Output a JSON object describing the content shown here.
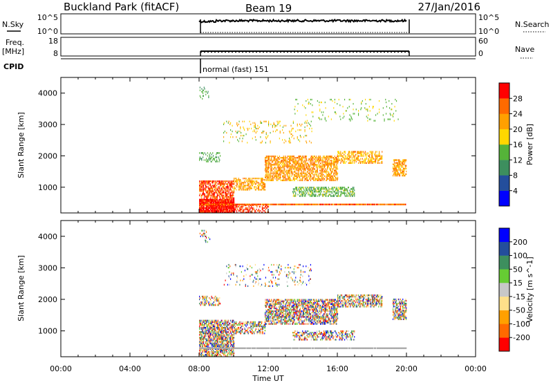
{
  "header": {
    "station": "Buckland Park (fitACF)",
    "beam": "Beam 19",
    "date": "27/Jan/2016"
  },
  "status_panels": {
    "nsky": {
      "label": "N.Sky",
      "ticks": [
        "10^5",
        "10^0"
      ]
    },
    "nsearch": {
      "label": "N.Search",
      "ticks": [
        "10^5",
        "10^0"
      ]
    },
    "freq": {
      "label_line1": "Freq.",
      "label_line2": "[MHz]",
      "ticks": [
        "18",
        "8"
      ]
    },
    "nave": {
      "label": "Nave",
      "ticks": [
        "60",
        "0"
      ]
    },
    "cpid": {
      "label": "CPID",
      "mode": "normal (fast) 151"
    }
  },
  "colors": {
    "power": [
      "#0000ff",
      "#244e9c",
      "#3d8f5e",
      "#55b339",
      "#ffd700",
      "#ffa000",
      "#ff6a00",
      "#ff0000"
    ],
    "velocity": [
      "#ff0000",
      "#ff6a00",
      "#ffa000",
      "#ffe08a",
      "#c8c8c8",
      "#66cc33",
      "#3d8f5e",
      "#244e9c",
      "#0000ff"
    ],
    "ground_scatter": "#a8a8a8",
    "accent": "#000000"
  },
  "chart_data": [
    {
      "type": "heatmap",
      "name": "power-panel",
      "ylabel": "Slant Range [km]",
      "xlabel": "",
      "xlim_hours": [
        0,
        24
      ],
      "ylim": [
        180,
        4500
      ],
      "yticks": [
        1000,
        2000,
        3000,
        4000
      ],
      "colorbar": {
        "label": "Power [dB]",
        "range": [
          0,
          32
        ],
        "ticks": [
          4,
          8,
          12,
          16,
          20,
          24,
          28
        ]
      },
      "data_window_hours": [
        8,
        20
      ],
      "regions": [
        {
          "x": [
            8.0,
            10.0
          ],
          "y": [
            180,
            1200
          ],
          "level": [
            22,
            32
          ],
          "density": 0.55
        },
        {
          "x": [
            8.0,
            10.0
          ],
          "y": [
            180,
            600
          ],
          "level": [
            27,
            32
          ],
          "density": 0.75
        },
        {
          "x": [
            8.0,
            20.0
          ],
          "y": [
            430,
            470
          ],
          "level": [
            22,
            30
          ],
          "density": 0.95
        },
        {
          "x": [
            10.0,
            12.0
          ],
          "y": [
            180,
            440
          ],
          "level": [
            24,
            32
          ],
          "density": 0.35
        },
        {
          "x": [
            10.0,
            11.8
          ],
          "y": [
            900,
            1300
          ],
          "level": [
            18,
            26
          ],
          "density": 0.45
        },
        {
          "x": [
            11.8,
            16.0
          ],
          "y": [
            1200,
            2000
          ],
          "level": [
            18,
            28
          ],
          "density": 0.5
        },
        {
          "x": [
            16.0,
            18.6
          ],
          "y": [
            1750,
            2150
          ],
          "level": [
            16,
            26
          ],
          "density": 0.45
        },
        {
          "x": [
            19.2,
            20.0
          ],
          "y": [
            1350,
            1850
          ],
          "level": [
            18,
            27
          ],
          "density": 0.5
        },
        {
          "x": [
            13.4,
            17.0
          ],
          "y": [
            700,
            1000
          ],
          "level": [
            10,
            17
          ],
          "density": 0.4
        },
        {
          "x": [
            8.0,
            9.2
          ],
          "y": [
            1800,
            2100
          ],
          "level": [
            10,
            16
          ],
          "density": 0.25
        },
        {
          "x": [
            9.4,
            14.5
          ],
          "y": [
            2400,
            3100
          ],
          "level": [
            14,
            24
          ],
          "density": 0.07
        },
        {
          "x": [
            13.5,
            19.6
          ],
          "y": [
            3100,
            3800
          ],
          "level": [
            12,
            18
          ],
          "density": 0.05
        },
        {
          "x": [
            8.0,
            8.6
          ],
          "y": [
            3800,
            4200
          ],
          "level": [
            8,
            16
          ],
          "density": 0.12
        }
      ]
    },
    {
      "type": "heatmap",
      "name": "velocity-panel",
      "ylabel": "Slant Range [km]",
      "xlabel": "Time UT",
      "xlim_hours": [
        0,
        24
      ],
      "xticks": [
        "00:00",
        "04:00",
        "08:00",
        "12:00",
        "16:00",
        "20:00",
        "00:00"
      ],
      "ylim": [
        180,
        4500
      ],
      "yticks": [
        1000,
        2000,
        3000,
        4000
      ],
      "colorbar": {
        "label": "Velocity [m s^-1]",
        "ticks": [
          "200",
          "100",
          "50",
          "15",
          "-15",
          "-50",
          "-100",
          "-200"
        ]
      },
      "data_window_hours": [
        8,
        20
      ],
      "regions": [
        {
          "x": [
            8.0,
            10.0
          ],
          "y": [
            180,
            1350
          ],
          "level": "mixed",
          "density": 0.6
        },
        {
          "x": [
            8.0,
            20.0
          ],
          "y": [
            430,
            470
          ],
          "level": "ground",
          "density": 0.95
        },
        {
          "x": [
            10.0,
            11.8
          ],
          "y": [
            900,
            1300
          ],
          "level": "mixed",
          "density": 0.45
        },
        {
          "x": [
            11.8,
            16.0
          ],
          "y": [
            1200,
            2000
          ],
          "level": "mixed",
          "density": 0.55
        },
        {
          "x": [
            16.0,
            18.6
          ],
          "y": [
            1750,
            2150
          ],
          "level": "mixed",
          "density": 0.5
        },
        {
          "x": [
            19.2,
            20.0
          ],
          "y": [
            1350,
            2000
          ],
          "level": "mixed",
          "density": 0.5
        },
        {
          "x": [
            13.4,
            17.0
          ],
          "y": [
            700,
            1000
          ],
          "level": "mixed",
          "density": 0.35
        },
        {
          "x": [
            8.0,
            9.2
          ],
          "y": [
            1800,
            2100
          ],
          "level": "mixed",
          "density": 0.3
        },
        {
          "x": [
            9.4,
            14.5
          ],
          "y": [
            2400,
            3100
          ],
          "level": "mixed",
          "density": 0.07
        },
        {
          "x": [
            8.0,
            8.6
          ],
          "y": [
            3800,
            4200
          ],
          "level": "mixed",
          "density": 0.12
        }
      ]
    }
  ]
}
